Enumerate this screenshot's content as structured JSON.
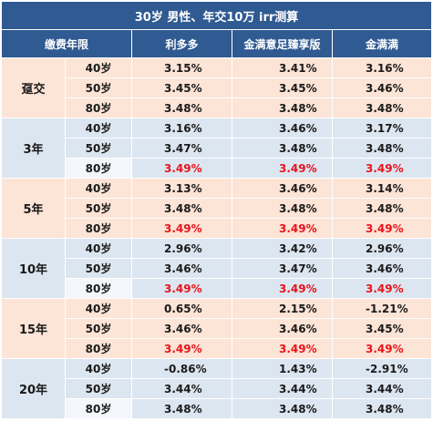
{
  "title": "30岁 男性、年交10万   irr测算",
  "headers": [
    "缴费年限",
    "利多多",
    "金满意足臻享版",
    "金满满"
  ],
  "colors": {
    "header_bg": "#2f5a92",
    "band_a": "#fce4d6",
    "band_b": "#dce6f1",
    "highlight": "#e8131b"
  },
  "groups": [
    {
      "label": "趸交",
      "band": "a",
      "rows": [
        {
          "age": "40岁",
          "values": [
            "3.15%",
            "3.41%",
            "3.16%"
          ],
          "highlight": [
            false,
            false,
            false
          ]
        },
        {
          "age": "50岁",
          "values": [
            "3.45%",
            "3.45%",
            "3.46%"
          ],
          "highlight": [
            false,
            false,
            false
          ]
        },
        {
          "age": "80岁",
          "values": [
            "3.48%",
            "3.48%",
            "3.48%"
          ],
          "highlight": [
            false,
            false,
            false
          ]
        }
      ]
    },
    {
      "label": "3年",
      "band": "b",
      "rows": [
        {
          "age": "40岁",
          "values": [
            "3.16%",
            "3.46%",
            "3.17%"
          ],
          "highlight": [
            false,
            false,
            false
          ]
        },
        {
          "age": "50岁",
          "values": [
            "3.47%",
            "3.48%",
            "3.48%"
          ],
          "highlight": [
            false,
            false,
            false
          ]
        },
        {
          "age": "80岁",
          "values": [
            "3.49%",
            "3.49%",
            "3.49%"
          ],
          "highlight": [
            true,
            true,
            true
          ]
        }
      ]
    },
    {
      "label": "5年",
      "band": "a",
      "rows": [
        {
          "age": "40岁",
          "values": [
            "3.13%",
            "3.46%",
            "3.14%"
          ],
          "highlight": [
            false,
            false,
            false
          ]
        },
        {
          "age": "50岁",
          "values": [
            "3.48%",
            "3.48%",
            "3.48%"
          ],
          "highlight": [
            false,
            false,
            false
          ]
        },
        {
          "age": "80岁",
          "values": [
            "3.49%",
            "3.49%",
            "3.49%"
          ],
          "highlight": [
            true,
            true,
            true
          ]
        }
      ]
    },
    {
      "label": "10年",
      "band": "b",
      "rows": [
        {
          "age": "40岁",
          "values": [
            "2.96%",
            "3.42%",
            "2.96%"
          ],
          "highlight": [
            false,
            false,
            false
          ]
        },
        {
          "age": "50岁",
          "values": [
            "3.46%",
            "3.47%",
            "3.46%"
          ],
          "highlight": [
            false,
            false,
            false
          ]
        },
        {
          "age": "80岁",
          "values": [
            "3.49%",
            "3.49%",
            "3.49%"
          ],
          "highlight": [
            true,
            true,
            true
          ]
        }
      ]
    },
    {
      "label": "15年",
      "band": "a",
      "rows": [
        {
          "age": "40岁",
          "values": [
            "0.65%",
            "2.15%",
            "-1.21%"
          ],
          "highlight": [
            false,
            false,
            false
          ]
        },
        {
          "age": "50岁",
          "values": [
            "3.46%",
            "3.46%",
            "3.45%"
          ],
          "highlight": [
            false,
            false,
            false
          ]
        },
        {
          "age": "80岁",
          "values": [
            "3.49%",
            "3.49%",
            "3.49%"
          ],
          "highlight": [
            true,
            true,
            true
          ]
        }
      ]
    },
    {
      "label": "20年",
      "band": "b",
      "rows": [
        {
          "age": "40岁",
          "values": [
            "-0.86%",
            "1.43%",
            "-2.91%"
          ],
          "highlight": [
            false,
            false,
            false
          ]
        },
        {
          "age": "50岁",
          "values": [
            "3.44%",
            "3.44%",
            "3.44%"
          ],
          "highlight": [
            false,
            false,
            false
          ]
        },
        {
          "age": "80岁",
          "values": [
            "3.48%",
            "3.48%",
            "3.48%"
          ],
          "highlight": [
            false,
            false,
            false
          ]
        }
      ]
    }
  ]
}
